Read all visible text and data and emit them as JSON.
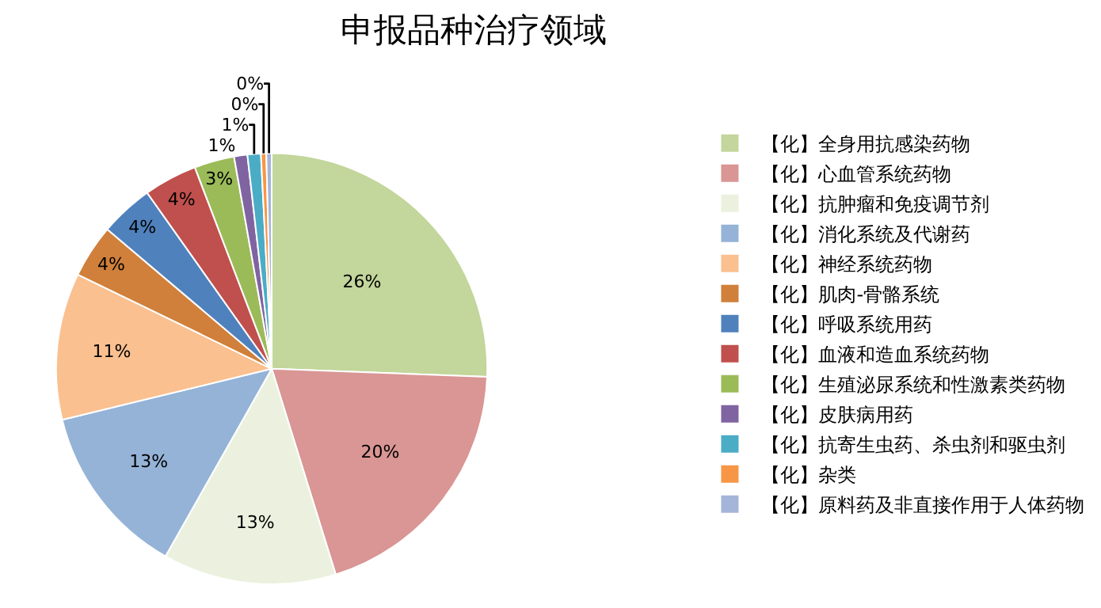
{
  "chart_data": {
    "type": "pie",
    "title": "申报品种治疗领域",
    "categories": [
      "【化】全身用抗感染药物",
      "【化】心血管系统药物",
      "【化】抗肿瘤和免疫调节剂",
      "【化】消化系统及代谢药",
      "【化】神经系统药物",
      "【化】肌肉-骨骼系统",
      "【化】呼吸系统用药",
      "【化】血液和造血系统药物",
      "【化】生殖泌尿系统和性激素类药物",
      "【化】皮肤病用药",
      "【化】抗寄生虫药、杀虫剂和驱虫剂",
      "【化】杂类",
      "【化】原料药及非直接作用于人体药物"
    ],
    "values": [
      25.6,
      19.6,
      13,
      13,
      11,
      4,
      4,
      4,
      3,
      1,
      1,
      0.4,
      0.4
    ],
    "value_labels": [
      "26%",
      "20%",
      "13%",
      "13%",
      "11%",
      "4%",
      "4%",
      "4%",
      "3%",
      "1%",
      "1%",
      "0%",
      "0%"
    ],
    "colors": [
      "#c3d69b",
      "#d99694",
      "#ebf1de",
      "#95b3d7",
      "#fac090",
      "#d0803a",
      "#4f81bd",
      "#c0504d",
      "#9bbb59",
      "#8064a2",
      "#4bacc6",
      "#f79646",
      "#a5b5d9"
    ],
    "legend": "right"
  }
}
